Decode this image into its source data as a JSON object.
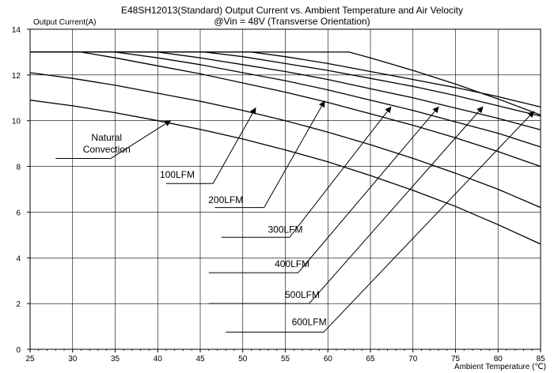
{
  "chart_data": {
    "type": "line",
    "title": "E48SH12013(Standard)  Output Current vs. Ambient Temperature and Air Velocity",
    "subtitle": "@Vin = 48V (Transverse Orientation)",
    "xlabel": "Ambient Temperature (℃)",
    "ylabel": "Output Current(A)",
    "xlim": [
      25,
      85
    ],
    "ylim": [
      0,
      14
    ],
    "x_ticks": [
      "25",
      "30",
      "35",
      "40",
      "45",
      "50",
      "55",
      "60",
      "65",
      "70",
      "75",
      "80",
      "85"
    ],
    "y_ticks": [
      "0",
      "2",
      "4",
      "6",
      "8",
      "10",
      "12",
      "14"
    ],
    "grid": true,
    "series": [
      {
        "name": "Natural Convection",
        "x": [
          25,
          30,
          35,
          40,
          45,
          50,
          55,
          60,
          65,
          70,
          75,
          80,
          85
        ],
        "y": [
          10.9,
          10.65,
          10.35,
          10.0,
          9.62,
          9.2,
          8.72,
          8.2,
          7.6,
          6.95,
          6.25,
          5.45,
          4.6
        ]
      },
      {
        "name": "100LFM",
        "x": [
          25,
          30,
          35,
          40,
          45,
          50,
          55,
          60,
          65,
          70,
          75,
          80,
          85
        ],
        "y": [
          12.1,
          11.85,
          11.55,
          11.2,
          10.85,
          10.45,
          10.0,
          9.5,
          8.95,
          8.35,
          7.7,
          7.0,
          6.2
        ]
      },
      {
        "name": "200LFM",
        "x": [
          25,
          31,
          35,
          40,
          45,
          50,
          55,
          60,
          65,
          70,
          75,
          80,
          85
        ],
        "y": [
          13.0,
          13.0,
          12.75,
          12.4,
          12.05,
          11.65,
          11.25,
          10.8,
          10.3,
          9.8,
          9.25,
          8.65,
          8.0
        ]
      },
      {
        "name": "300LFM",
        "x": [
          25,
          35,
          40,
          45,
          50,
          55,
          60,
          65,
          70,
          75,
          80,
          85
        ],
        "y": [
          13.0,
          13.0,
          12.75,
          12.45,
          12.1,
          11.75,
          11.35,
          10.9,
          10.45,
          9.95,
          9.45,
          8.85
        ]
      },
      {
        "name": "400LFM",
        "x": [
          25,
          40,
          45,
          50,
          55,
          60,
          65,
          70,
          75,
          80,
          85
        ],
        "y": [
          13.0,
          13.0,
          12.75,
          12.45,
          12.15,
          11.8,
          11.4,
          11.0,
          10.55,
          10.1,
          9.6
        ]
      },
      {
        "name": "500LFM",
        "x": [
          25,
          45.5,
          50,
          55,
          60,
          65,
          70,
          75,
          80,
          85
        ],
        "y": [
          13.0,
          13.0,
          12.8,
          12.5,
          12.2,
          11.85,
          11.5,
          11.1,
          10.65,
          10.2
        ]
      },
      {
        "name": "600LFM",
        "x": [
          25,
          51,
          55,
          60,
          65,
          70,
          75,
          80,
          85
        ],
        "y": [
          13.0,
          13.0,
          12.8,
          12.5,
          12.15,
          11.8,
          11.45,
          11.05,
          10.6
        ]
      },
      {
        "x": [
          25,
          62.5,
          65,
          70,
          75,
          80,
          85
        ],
        "y": [
          13.0,
          13.0,
          12.75,
          12.2,
          11.6,
          10.95,
          10.25
        ]
      }
    ],
    "annotations": [
      {
        "label": "Natural Convection",
        "text_lines": [
          "Natural",
          "Convection"
        ],
        "text_x": 34.0,
        "text_y": 8.6,
        "line_x": [
          28.0,
          34.5
        ],
        "line_y": 8.35,
        "arrow_to": [
          41.5,
          10.0
        ]
      },
      {
        "label": "100LFM",
        "text_x": 42.3,
        "text_y": 7.5,
        "line_x": [
          41.0,
          46.5
        ],
        "line_y": 7.25,
        "arrow_to": [
          51.5,
          10.55
        ]
      },
      {
        "label": "200LFM",
        "text_x": 48.0,
        "text_y": 6.4,
        "line_x": [
          46.7,
          52.5
        ],
        "line_y": 6.2,
        "arrow_to": [
          59.6,
          10.85
        ]
      },
      {
        "label": "300LFM",
        "text_x": 55.0,
        "text_y": 5.1,
        "line_x": [
          47.5,
          55.5
        ],
        "line_y": 4.9,
        "arrow_to": [
          67.4,
          10.6
        ]
      },
      {
        "label": "400LFM",
        "text_x": 55.8,
        "text_y": 3.6,
        "line_x": [
          46.0,
          56.5
        ],
        "line_y": 3.35,
        "arrow_to": [
          73.0,
          10.6
        ]
      },
      {
        "label": "500LFM",
        "text_x": 57.0,
        "text_y": 2.25,
        "line_x": [
          46.0,
          57.8
        ],
        "line_y": 2.0,
        "arrow_to": [
          78.2,
          10.6
        ]
      },
      {
        "label": "600LFM",
        "text_x": 57.8,
        "text_y": 1.05,
        "line_x": [
          48.0,
          59.5
        ],
        "line_y": 0.75,
        "arrow_to": [
          84.2,
          10.4
        ]
      }
    ]
  }
}
